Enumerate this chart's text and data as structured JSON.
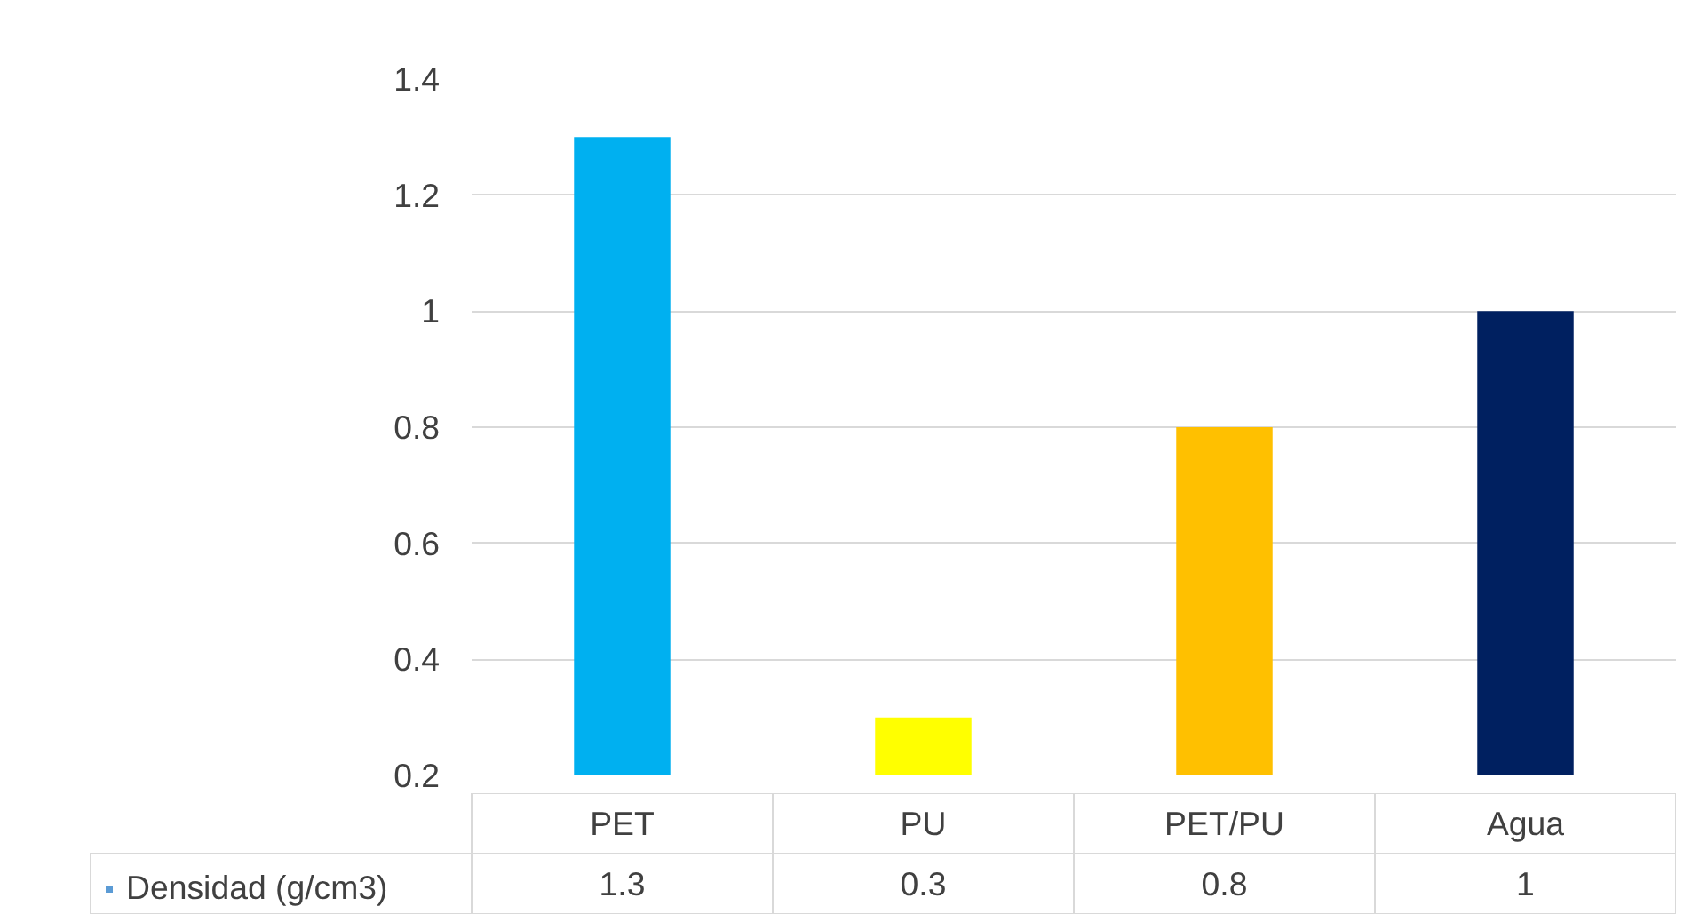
{
  "chart_data": {
    "type": "bar",
    "categories": [
      "PET",
      "PU",
      "PET/PU",
      "Agua"
    ],
    "series": [
      {
        "name": "Densidad (g/cm3)",
        "color": "#5b9bd5",
        "colors": [
          "#00b0f0",
          "#ffff00",
          "#ffc000",
          "#002060"
        ],
        "values": [
          1.3,
          0.3,
          0.8,
          1
        ]
      }
    ],
    "ylim": [
      0.2,
      1.4
    ],
    "yticks": [
      0.2,
      0.4,
      0.6,
      0.8,
      1,
      1.2,
      1.4
    ],
    "grid": "y",
    "data_labels": true,
    "legend": "bottom"
  }
}
